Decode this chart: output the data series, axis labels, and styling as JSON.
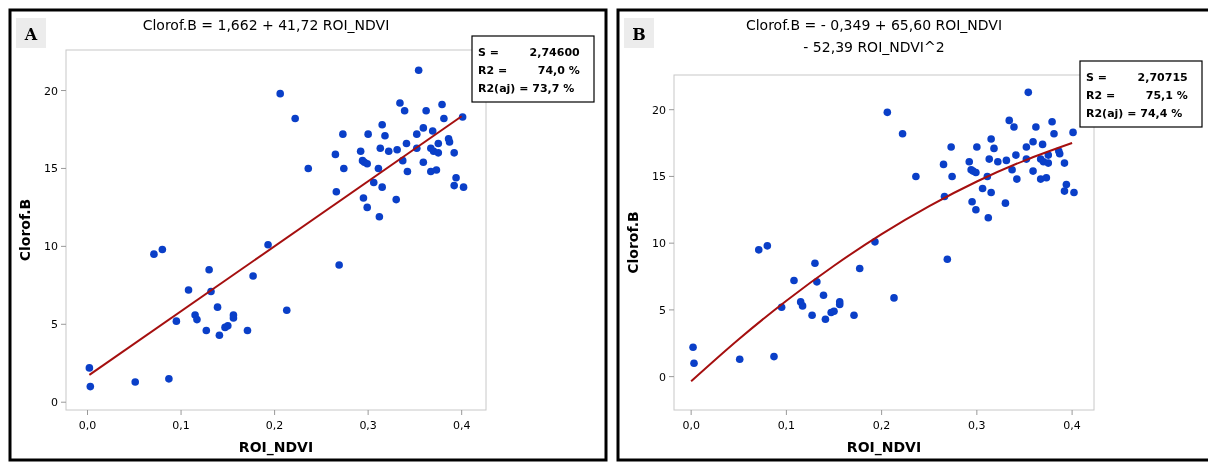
{
  "chart_data": [
    {
      "type": "scatter",
      "title": "Clorof.B = 1,662 + 41,72 ROI_NDVI",
      "xlabel": "ROI_NDVI",
      "ylabel": "Clorof.B",
      "annotations": [
        "A",
        "S =        2,74600",
        "R2 =        74,0 %",
        "R2(aj) = 73,7 %"
      ],
      "xlim": [
        -0.023,
        0.426
      ],
      "xticks": [
        {
          "value": 0,
          "label": "0,0"
        },
        {
          "value": 0.1,
          "label": "0,1"
        },
        {
          "value": 0.2,
          "label": "0,2"
        },
        {
          "value": 0.3,
          "label": "0,3"
        },
        {
          "value": 0.4,
          "label": "0,4"
        }
      ],
      "ylim": [
        -0.5,
        22.6
      ],
      "yticks": [
        0,
        5,
        10,
        15,
        20
      ],
      "grid": false,
      "marker": "circle",
      "series": [
        {
          "type": "scatter",
          "color": "#0a3fc8",
          "x": [
            0.002,
            0.003,
            0.051,
            0.071,
            0.08,
            0.087,
            0.095,
            0.108,
            0.115,
            0.117,
            0.127,
            0.13,
            0.132,
            0.139,
            0.141,
            0.147,
            0.15,
            0.156,
            0.156,
            0.171,
            0.177,
            0.193,
            0.206,
            0.213,
            0.222,
            0.236,
            0.265,
            0.266,
            0.269,
            0.273,
            0.274,
            0.292,
            0.294,
            0.296,
            0.299,
            0.295,
            0.299,
            0.3,
            0.306,
            0.311,
            0.312,
            0.313,
            0.315,
            0.315,
            0.318,
            0.322,
            0.33,
            0.331,
            0.334,
            0.337,
            0.339,
            0.341,
            0.342,
            0.352,
            0.352,
            0.354,
            0.359,
            0.359,
            0.362,
            0.367,
            0.367,
            0.369,
            0.37,
            0.373,
            0.375,
            0.375,
            0.379,
            0.381,
            0.386,
            0.387,
            0.392,
            0.392,
            0.394,
            0.401,
            0.402
          ],
          "values": [
            2.2,
            1.0,
            1.3,
            9.5,
            9.8,
            1.5,
            5.2,
            7.2,
            5.6,
            5.3,
            4.6,
            8.5,
            7.1,
            6.1,
            4.3,
            4.8,
            4.9,
            5.6,
            5.4,
            4.6,
            8.1,
            10.1,
            19.8,
            5.9,
            18.2,
            15.0,
            15.9,
            13.5,
            8.8,
            17.2,
            15.0,
            16.1,
            15.5,
            15.4,
            15.3,
            13.1,
            12.5,
            17.2,
            14.1,
            15.0,
            11.9,
            16.3,
            17.8,
            13.8,
            17.1,
            16.1,
            13.0,
            16.2,
            19.2,
            15.5,
            18.7,
            16.6,
            14.8,
            17.2,
            16.3,
            21.3,
            15.4,
            17.6,
            18.7,
            14.8,
            16.3,
            17.4,
            16.1,
            14.9,
            16.6,
            16.0,
            19.1,
            18.2,
            16.9,
            16.7,
            16.0,
            13.9,
            14.4,
            18.3,
            13.8
          ]
        },
        {
          "type": "line",
          "color": "#a50f0f",
          "marker": "none",
          "x": [
            0.002,
            0.4
          ],
          "values": [
            1.75,
            18.35
          ]
        }
      ]
    },
    {
      "type": "scatter",
      "title": "Clorof.B = - 0,349 + 65,60 ROI_NDVI",
      "subtitle": "- 52,39 ROI_NDVI^2",
      "xlabel": "ROI_NDVI",
      "ylabel": "Clorof.B",
      "annotations": [
        "B",
        "S =        2,70715",
        "R2 =        75,1 %",
        "R2(aj) = 74,4 %"
      ],
      "xlim": [
        -0.018,
        0.423
      ],
      "xticks": [
        {
          "value": 0,
          "label": "0,0"
        },
        {
          "value": 0.1,
          "label": "0,1"
        },
        {
          "value": 0.2,
          "label": "0,2"
        },
        {
          "value": 0.3,
          "label": "0,3"
        },
        {
          "value": 0.4,
          "label": "0,4"
        }
      ],
      "ylim": [
        -2.5,
        22.6
      ],
      "yticks": [
        0,
        5,
        10,
        15,
        20
      ],
      "grid": false,
      "marker": "circle",
      "series": [
        {
          "type": "scatter",
          "color": "#0a3fc8",
          "x": [
            0.002,
            0.003,
            0.051,
            0.071,
            0.08,
            0.087,
            0.095,
            0.108,
            0.115,
            0.117,
            0.127,
            0.13,
            0.132,
            0.139,
            0.141,
            0.147,
            0.15,
            0.156,
            0.156,
            0.171,
            0.177,
            0.193,
            0.206,
            0.213,
            0.222,
            0.236,
            0.265,
            0.266,
            0.269,
            0.273,
            0.274,
            0.292,
            0.294,
            0.296,
            0.299,
            0.295,
            0.299,
            0.3,
            0.306,
            0.311,
            0.312,
            0.313,
            0.315,
            0.315,
            0.318,
            0.322,
            0.33,
            0.331,
            0.334,
            0.337,
            0.339,
            0.341,
            0.342,
            0.352,
            0.352,
            0.354,
            0.359,
            0.359,
            0.362,
            0.367,
            0.367,
            0.369,
            0.37,
            0.373,
            0.375,
            0.375,
            0.379,
            0.381,
            0.386,
            0.387,
            0.392,
            0.392,
            0.394,
            0.401,
            0.402
          ],
          "values": [
            2.2,
            1.0,
            1.3,
            9.5,
            9.8,
            1.5,
            5.2,
            7.2,
            5.6,
            5.3,
            4.6,
            8.5,
            7.1,
            6.1,
            4.3,
            4.8,
            4.9,
            5.6,
            5.4,
            4.6,
            8.1,
            10.1,
            19.8,
            5.9,
            18.2,
            15.0,
            15.9,
            13.5,
            8.8,
            17.2,
            15.0,
            16.1,
            15.5,
            15.4,
            15.3,
            13.1,
            12.5,
            17.2,
            14.1,
            15.0,
            11.9,
            16.3,
            17.8,
            13.8,
            17.1,
            16.1,
            13.0,
            16.2,
            19.2,
            15.5,
            18.7,
            16.6,
            14.8,
            17.2,
            16.3,
            21.3,
            15.4,
            17.6,
            18.7,
            14.8,
            16.3,
            17.4,
            16.1,
            14.9,
            16.6,
            16.0,
            19.1,
            18.2,
            16.9,
            16.7,
            16.0,
            13.9,
            14.4,
            18.3,
            13.8
          ]
        },
        {
          "type": "line",
          "color": "#a50f0f",
          "marker": "none",
          "x": [
            0,
            0.05,
            0.1,
            0.15,
            0.2,
            0.25,
            0.3,
            0.35,
            0.4
          ],
          "values": [
            -0.35,
            2.8,
            5.69,
            8.31,
            10.68,
            12.78,
            14.62,
            16.19,
            17.51
          ]
        }
      ]
    }
  ]
}
